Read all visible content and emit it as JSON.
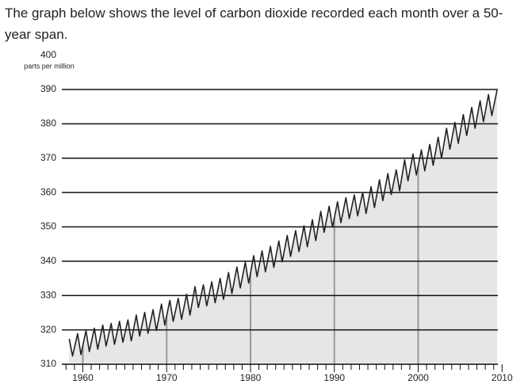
{
  "text": "The graph below shows the level of carbon dioxide recorded each month over a 50-year span.",
  "chart_data": {
    "type": "line",
    "y_unit": "parts per million",
    "x": [
      1958.38,
      1958.78,
      1959.38,
      1959.78,
      1960.38,
      1960.78,
      1961.38,
      1961.78,
      1962.38,
      1962.78,
      1963.38,
      1963.78,
      1964.38,
      1964.78,
      1965.38,
      1965.78,
      1966.38,
      1966.78,
      1967.38,
      1967.78,
      1968.38,
      1968.78,
      1969.38,
      1969.78,
      1970.38,
      1970.78,
      1971.38,
      1971.78,
      1972.38,
      1972.78,
      1973.38,
      1973.78,
      1974.38,
      1974.78,
      1975.38,
      1975.78,
      1976.38,
      1976.78,
      1977.38,
      1977.78,
      1978.38,
      1978.78,
      1979.38,
      1979.78,
      1980.38,
      1980.78,
      1981.38,
      1981.78,
      1982.38,
      1982.78,
      1983.38,
      1983.78,
      1984.38,
      1984.78,
      1985.38,
      1985.78,
      1986.38,
      1986.78,
      1987.38,
      1987.78,
      1988.38,
      1988.78,
      1989.38,
      1989.78,
      1990.38,
      1990.78,
      1991.38,
      1991.78,
      1992.38,
      1992.78,
      1993.38,
      1993.78,
      1994.38,
      1994.78,
      1995.38,
      1995.78,
      1996.38,
      1996.78,
      1997.38,
      1997.78,
      1998.38,
      1998.78,
      1999.38,
      1999.78,
      2000.38,
      2000.78,
      2001.38,
      2001.78,
      2002.38,
      2002.78,
      2003.38,
      2003.78,
      2004.38,
      2004.78,
      2005.38,
      2005.78,
      2006.38,
      2006.78,
      2007.38,
      2007.78,
      2008.38,
      2008.78,
      2009.4
    ],
    "values": [
      317.4,
      312.4,
      318.9,
      312.8,
      319.8,
      313.7,
      320.5,
      314.4,
      321.4,
      315.3,
      321.9,
      315.8,
      322.5,
      316.4,
      322.9,
      316.8,
      324.3,
      318.2,
      325.1,
      319.0,
      325.9,
      319.8,
      327.5,
      321.4,
      328.6,
      322.5,
      329.2,
      323.1,
      330.4,
      324.3,
      332.6,
      326.5,
      333.1,
      327.0,
      334.0,
      327.9,
      335.0,
      328.9,
      336.7,
      330.6,
      338.3,
      332.2,
      339.7,
      333.6,
      341.6,
      335.5,
      343.0,
      336.9,
      344.3,
      338.2,
      345.9,
      339.8,
      347.5,
      341.4,
      348.9,
      342.8,
      350.3,
      344.2,
      352.1,
      346.0,
      354.5,
      348.4,
      356.0,
      349.9,
      357.3,
      351.2,
      358.5,
      352.4,
      359.3,
      353.2,
      360.0,
      353.9,
      361.7,
      355.6,
      363.7,
      357.6,
      365.5,
      359.4,
      366.6,
      360.5,
      369.5,
      363.4,
      371.2,
      365.1,
      372.4,
      366.3,
      374.0,
      367.9,
      376.1,
      370.0,
      378.7,
      372.6,
      380.4,
      374.3,
      382.7,
      376.6,
      384.8,
      378.7,
      386.7,
      380.6,
      388.5,
      382.4,
      389.8
    ],
    "color": "#222222",
    "fill": "#e6e6e6",
    "xlim": [
      1957.5,
      2009.5
    ],
    "xticks": [
      1960,
      1970,
      1980,
      1990,
      2000,
      2010
    ],
    "xminorticks": [
      1958,
      1959,
      1961,
      1962,
      1963,
      1964,
      1965,
      1966,
      1967,
      1968,
      1969,
      1971,
      1972,
      1973,
      1974,
      1975,
      1976,
      1977,
      1978,
      1979,
      1981,
      1982,
      1983,
      1984,
      1985,
      1986,
      1987,
      1988,
      1989,
      1991,
      1992,
      1993,
      1994,
      1995,
      1996,
      1997,
      1998,
      1999,
      2001,
      2002,
      2003,
      2004,
      2005,
      2006,
      2007,
      2008,
      2009
    ],
    "ylim": [
      310,
      400
    ],
    "yticks": [
      310,
      320,
      330,
      340,
      350,
      360,
      370,
      380,
      390,
      400
    ],
    "grid": true
  }
}
